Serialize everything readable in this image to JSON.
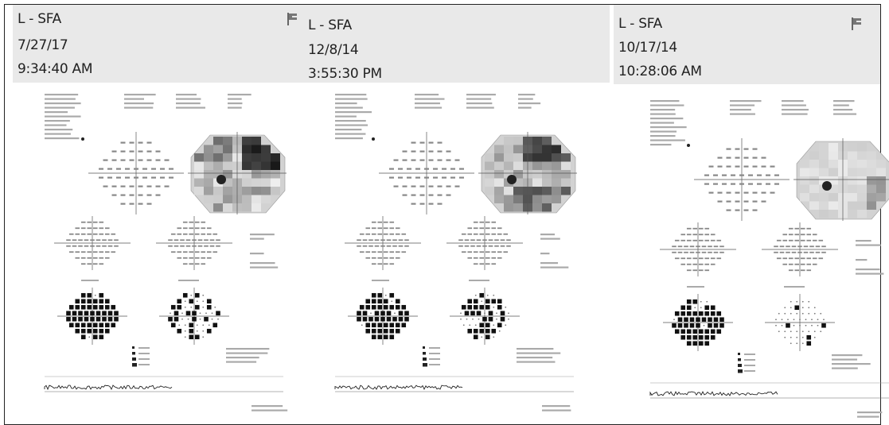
{
  "panels": [
    {
      "eye": "L - SFA",
      "date": "7/27/17",
      "time": "9:34:40 AM",
      "icon": "flag-icon",
      "sensitivity_map": "severe-superior-and-nasal-loss",
      "total_deviation_dark_fraction": 0.9,
      "pattern_deviation_dark_fraction": 0.5
    },
    {
      "eye": "L - SFA",
      "date": "12/8/14",
      "time": "3:55:30 PM",
      "icon": "flag-icon",
      "sensitivity_map": "superior-and-inferior-loss",
      "total_deviation_dark_fraction": 0.9,
      "pattern_deviation_dark_fraction": 0.55
    },
    {
      "eye": "L - SFA",
      "date": "10/17/14",
      "time": "10:28:06 AM",
      "icon": "flag-icon",
      "sensitivity_map": "mild-diffuse-loss",
      "total_deviation_dark_fraction": 0.85,
      "pattern_deviation_dark_fraction": 0.1
    }
  ],
  "colors": {
    "header_bg": "#e9e9e9",
    "frame_border": "#222222",
    "ink": "#333333"
  }
}
